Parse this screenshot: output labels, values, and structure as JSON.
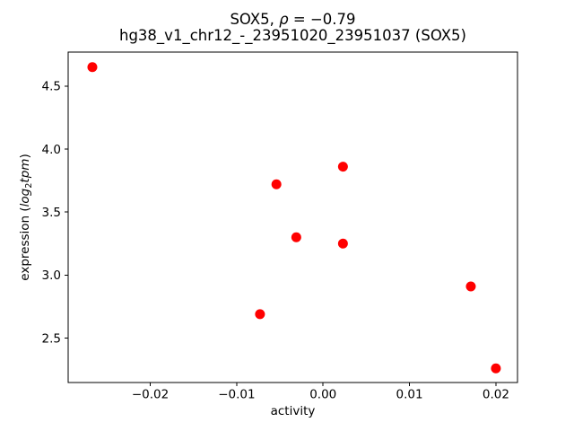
{
  "figure": {
    "title": {
      "prefix": "SOX5, ",
      "rho": "ρ",
      "suffix": " = −0.79",
      "line2": "hg38_v1_chr12_-_23951020_23951037 (SOX5)"
    },
    "xlabel": "activity",
    "ylabel": {
      "prefix": "expression (",
      "log": "log",
      "sub": "2",
      "tpm": "tpm",
      "suffix": ")"
    }
  },
  "chart_data": {
    "type": "scatter",
    "title": "SOX5, ρ = −0.79",
    "subtitle": "hg38_v1_chr12_-_23951020_23951037 (SOX5)",
    "xlabel": "activity",
    "ylabel": "expression (log2 tpm)",
    "marker_color": "#ff0000",
    "marker_radius_px": 5.5,
    "axis_color": "#000000",
    "background_color": "#ffffff",
    "grid": false,
    "legend": null,
    "xlim": [
      -0.0295,
      0.0225
    ],
    "ylim": [
      2.148,
      4.769
    ],
    "x_ticks": [
      -0.02,
      -0.01,
      0,
      0.01,
      0.02
    ],
    "x_tick_labels": [
      "−0.02",
      "−0.01",
      "0.00",
      "0.01",
      "0.02"
    ],
    "y_ticks": [
      2.5,
      3.0,
      3.5,
      4.0,
      4.5
    ],
    "y_tick_labels": [
      "2.5",
      "3.0",
      "3.5",
      "4.0",
      "4.5"
    ],
    "points": [
      {
        "x": -0.0267,
        "y": 4.65
      },
      {
        "x": -0.0073,
        "y": 2.69
      },
      {
        "x": -0.0054,
        "y": 3.72
      },
      {
        "x": -0.0031,
        "y": 3.3
      },
      {
        "x": 0.0023,
        "y": 3.86
      },
      {
        "x": 0.0023,
        "y": 3.25
      },
      {
        "x": 0.0171,
        "y": 2.91
      },
      {
        "x": 0.02,
        "y": 2.26
      }
    ]
  }
}
